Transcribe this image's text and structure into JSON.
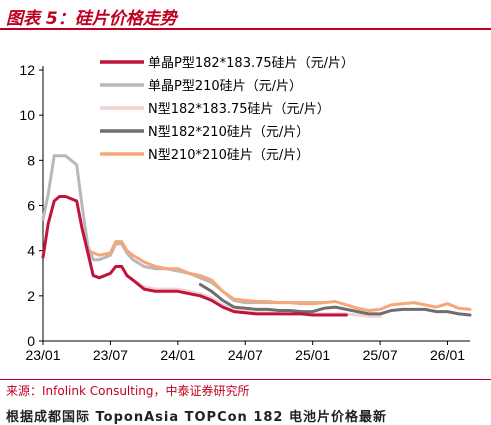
{
  "header": {
    "title": "图表 5：硅片价格走势"
  },
  "footer": {
    "source": "来源：Infolink Consulting，中泰证券研究所",
    "cutoff_text": "根据成都国际 ToponAsia  TOPCon  182 电池片价格最新"
  },
  "chart_data": {
    "type": "line",
    "xlabel": "",
    "ylabel": "",
    "ylim": [
      0,
      12
    ],
    "yticks": [
      0,
      2,
      4,
      6,
      8,
      10,
      12
    ],
    "xticks": [
      "23/01",
      "23/07",
      "24/01",
      "24/07",
      "25/01",
      "25/07",
      "26/01"
    ],
    "xlim": [
      "2023-01",
      "2026-03"
    ],
    "grid": false,
    "legend": "top-right",
    "series": [
      {
        "name": "单晶P型182*183.75硅片（元/片）",
        "color": "#c0143c",
        "width": 3,
        "x": [
          "2023-01",
          "2023-01-15",
          "2023-02",
          "2023-02-15",
          "2023-03",
          "2023-04",
          "2023-04-15",
          "2023-05",
          "2023-05-15",
          "2023-06",
          "2023-07",
          "2023-07-15",
          "2023-08",
          "2023-08-15",
          "2023-09",
          "2023-10",
          "2023-11",
          "2023-12",
          "2024-01",
          "2024-02",
          "2024-03",
          "2024-04",
          "2024-05",
          "2024-06",
          "2024-07",
          "2024-08",
          "2024-09",
          "2024-10",
          "2024-11",
          "2024-12",
          "2025-01",
          "2025-02",
          "2025-03",
          "2025-04"
        ],
        "y": [
          3.7,
          5.2,
          6.2,
          6.4,
          6.4,
          6.2,
          5.0,
          3.9,
          2.9,
          2.8,
          3.0,
          3.3,
          3.3,
          2.9,
          2.7,
          2.3,
          2.2,
          2.2,
          2.2,
          2.1,
          2.0,
          1.8,
          1.5,
          1.3,
          1.25,
          1.2,
          1.2,
          1.2,
          1.2,
          1.2,
          1.15,
          1.15,
          1.15,
          1.15
        ]
      },
      {
        "name": "单晶P型210硅片（元/片）",
        "color": "#b8b8b8",
        "width": 3,
        "x": [
          "2023-01",
          "2023-01-15",
          "2023-02",
          "2023-02-15",
          "2023-03",
          "2023-04",
          "2023-04-15",
          "2023-05",
          "2023-05-15",
          "2023-06",
          "2023-07",
          "2023-07-15",
          "2023-08",
          "2023-08-15",
          "2023-09",
          "2023-10",
          "2023-11",
          "2023-12",
          "2024-01",
          "2024-02",
          "2024-03",
          "2024-04",
          "2024-05",
          "2024-06",
          "2024-07",
          "2024-08",
          "2024-09",
          "2024-10",
          "2024-11",
          "2024-12",
          "2025-01",
          "2025-02"
        ],
        "y": [
          5.4,
          6.5,
          8.2,
          8.2,
          8.2,
          7.8,
          6.0,
          4.2,
          3.6,
          3.6,
          3.8,
          4.3,
          4.3,
          3.9,
          3.6,
          3.3,
          3.2,
          3.2,
          3.1,
          3.0,
          2.8,
          2.6,
          2.2,
          1.8,
          1.7,
          1.7,
          1.7,
          1.7,
          1.7,
          1.7,
          1.7,
          1.7
        ]
      },
      {
        "name": "N型182*183.75硅片（元/片）",
        "color": "#f4d2d2",
        "width": 3,
        "x": [
          "2023-09",
          "2023-10",
          "2023-11",
          "2023-12",
          "2024-01",
          "2024-02",
          "2024-03",
          "2024-04",
          "2024-05",
          "2024-06",
          "2024-07",
          "2024-08",
          "2024-09",
          "2024-10",
          "2024-11",
          "2024-12",
          "2025-01",
          "2025-02",
          "2025-03",
          "2025-04",
          "2025-05",
          "2025-06",
          "2025-07"
        ],
        "y": [
          2.7,
          2.4,
          2.3,
          2.3,
          2.3,
          2.2,
          2.1,
          1.9,
          1.6,
          1.35,
          1.3,
          1.25,
          1.25,
          1.2,
          1.2,
          1.2,
          1.2,
          1.2,
          1.2,
          1.2,
          1.15,
          1.1,
          1.1
        ]
      },
      {
        "name": "N型182*210硅片（元/片）",
        "color": "#6e6e6e",
        "width": 3,
        "x": [
          "2024-03",
          "2024-04",
          "2024-05",
          "2024-06",
          "2024-07",
          "2024-08",
          "2024-09",
          "2024-10",
          "2024-11",
          "2024-12",
          "2025-01",
          "2025-02",
          "2025-03",
          "2025-04",
          "2025-05",
          "2025-06",
          "2025-07",
          "2025-08",
          "2025-09",
          "2025-10",
          "2025-11",
          "2025-12",
          "2026-01",
          "2026-02",
          "2026-03"
        ],
        "y": [
          2.5,
          2.2,
          1.8,
          1.5,
          1.45,
          1.4,
          1.4,
          1.35,
          1.35,
          1.3,
          1.3,
          1.45,
          1.5,
          1.4,
          1.3,
          1.2,
          1.2,
          1.35,
          1.4,
          1.4,
          1.4,
          1.3,
          1.3,
          1.2,
          1.15
        ]
      },
      {
        "name": "N型210*210硅片（元/片）",
        "color": "#f5a77a",
        "width": 3,
        "x": [
          "2023-05",
          "2023-06",
          "2023-07",
          "2023-07-15",
          "2023-08",
          "2023-08-15",
          "2023-09",
          "2023-10",
          "2023-11",
          "2023-12",
          "2024-01",
          "2024-02",
          "2024-03",
          "2024-04",
          "2024-05",
          "2024-06",
          "2024-07",
          "2024-08",
          "2024-09",
          "2024-10",
          "2024-11",
          "2024-12",
          "2025-01",
          "2025-02",
          "2025-03",
          "2025-04",
          "2025-05",
          "2025-06",
          "2025-07",
          "2025-08",
          "2025-09",
          "2025-10",
          "2025-11",
          "2025-12",
          "2026-01",
          "2026-02",
          "2026-03"
        ],
        "y": [
          4.0,
          3.8,
          3.9,
          4.4,
          4.4,
          4.0,
          3.8,
          3.5,
          3.3,
          3.2,
          3.2,
          3.0,
          2.9,
          2.7,
          2.2,
          1.85,
          1.8,
          1.75,
          1.75,
          1.7,
          1.7,
          1.65,
          1.65,
          1.7,
          1.75,
          1.6,
          1.45,
          1.35,
          1.4,
          1.6,
          1.65,
          1.7,
          1.6,
          1.5,
          1.65,
          1.45,
          1.4
        ]
      }
    ]
  }
}
